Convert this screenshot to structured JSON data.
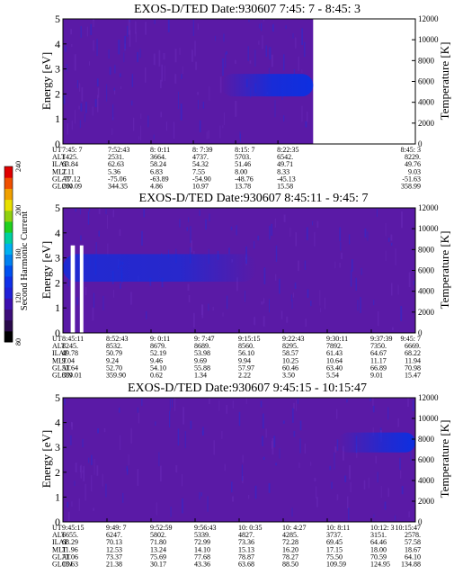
{
  "chart_data": [
    {
      "type": "heatmap",
      "title": "EXOS-D/TED   Date:930607  7:45: 7 - 8:45: 3",
      "ylabel": "Energy [eV]",
      "y2label": "Temperature [K]",
      "ylim": [
        0,
        5
      ],
      "y2lim": [
        0,
        12000
      ],
      "yticks": [
        "0",
        "1",
        "2",
        "3",
        "4",
        "5"
      ],
      "y2ticks": [
        "0",
        "2000",
        "4000",
        "6000",
        "8000",
        "10000",
        "12000"
      ],
      "time_range_fraction": [
        0,
        0.71
      ],
      "enhancement": {
        "energy_center": 2.35,
        "energy_halfwidth": 0.45,
        "start_fraction": 0.45,
        "end_fraction": 0.71
      },
      "rows": [
        "UT",
        "ALT",
        "ILAT",
        "MLT",
        "GLAT",
        "GLON"
      ],
      "columns": [
        {
          "at": 0.0,
          "values": [
            "7:45: 7",
            "1425.",
            "63.84",
            "2.11",
            "-77.12",
            "260.09"
          ]
        },
        {
          "at": 0.13,
          "values": [
            "7:52:43",
            "2531.",
            "62.63",
            "5.36",
            "-75.06",
            "344.35"
          ]
        },
        {
          "at": 0.25,
          "values": [
            "8: 0:11",
            "3664.",
            "58.24",
            "6.83",
            "-63.89",
            "4.86"
          ]
        },
        {
          "at": 0.37,
          "values": [
            "8: 7:39",
            "4737.",
            "54.32",
            "7.55",
            "-54.90",
            "10.97"
          ]
        },
        {
          "at": 0.49,
          "values": [
            "8:15: 7",
            "5703.",
            "51.46",
            "8.00",
            "-48.76",
            "13.78"
          ]
        },
        {
          "at": 0.61,
          "values": [
            "8:22:35",
            "6542.",
            "49.71",
            "8.33",
            "-45.13",
            "15.58"
          ]
        },
        {
          "at": 1.0,
          "values": [
            "8:45: 3",
            "8229.",
            "49.76",
            "9.03",
            "-51.63",
            "358.99"
          ]
        }
      ]
    },
    {
      "type": "heatmap",
      "title": "EXOS-D/TED   Date:930607  8:45:11 - 9:45: 7",
      "ylabel": "Energy [eV]",
      "y2label": "Temperature [K]",
      "ylim": [
        0,
        5
      ],
      "y2lim": [
        0,
        12000
      ],
      "yticks": [
        "0",
        "1",
        "2",
        "3",
        "4",
        "5"
      ],
      "y2ticks": [
        "0",
        "2000",
        "4000",
        "6000",
        "8000",
        "10000",
        "12000"
      ],
      "time_range_fraction": [
        0,
        1
      ],
      "data_gaps_fraction": [
        [
          0.022,
          0.034
        ],
        [
          0.048,
          0.058
        ]
      ],
      "enhancement": {
        "energy_center": 2.6,
        "energy_halfwidth": 0.55,
        "start_fraction": 0.0,
        "end_fraction": 0.55
      },
      "rows": [
        "UT",
        "ALT",
        "ILAT",
        "MLT",
        "GLAT",
        "GLON"
      ],
      "columns": [
        {
          "at": 0.0,
          "values": [
            "8:45:11",
            "8245.",
            "49.78",
            "9.04",
            "51.64",
            "359.01"
          ]
        },
        {
          "at": 0.125,
          "values": [
            "8:52:43",
            "8532.",
            "50.79",
            "9.24",
            "52.70",
            "359.90"
          ]
        },
        {
          "at": 0.25,
          "values": [
            "9: 0:11",
            "8679.",
            "52.19",
            "9.46",
            "54.10",
            "0.62"
          ]
        },
        {
          "at": 0.375,
          "values": [
            "9: 7:47",
            "8689.",
            "53.98",
            "9.69",
            "55.88",
            "1.34"
          ]
        },
        {
          "at": 0.5,
          "values": [
            "9:15:15",
            "8560.",
            "56.10",
            "9.94",
            "57.97",
            "2.22"
          ]
        },
        {
          "at": 0.625,
          "values": [
            "9:22:43",
            "8295.",
            "58.57",
            "10.25",
            "60.46",
            "3.50"
          ]
        },
        {
          "at": 0.75,
          "values": [
            "9:30:11",
            "7892.",
            "61.43",
            "10.64",
            "63.40",
            "5.54"
          ]
        },
        {
          "at": 0.875,
          "values": [
            "9:37:39",
            "7350.",
            "64.67",
            "11.17",
            "66.89",
            "9.01"
          ]
        },
        {
          "at": 1.0,
          "values": [
            "9:45: 7",
            "6669.",
            "68.22",
            "11.94",
            "70.98",
            "15.47"
          ]
        }
      ]
    },
    {
      "type": "heatmap",
      "title": "EXOS-D/TED   Date:930607  9:45:15 - 10:15:47",
      "ylabel": "Energy [eV]",
      "y2label": "Temperature [K]",
      "ylim": [
        0,
        5
      ],
      "y2lim": [
        0,
        12000
      ],
      "yticks": [
        "0",
        "1",
        "2",
        "3",
        "4",
        "5"
      ],
      "y2ticks": [
        "0",
        "2000",
        "4000",
        "6000",
        "8000",
        "10000",
        "12000"
      ],
      "time_range_fraction": [
        0,
        1
      ],
      "enhancement": {
        "energy_center": 3.2,
        "energy_halfwidth": 0.4,
        "start_fraction": 0.78,
        "end_fraction": 1.0
      },
      "rows": [
        "UT",
        "ALT",
        "ILAT",
        "MLT",
        "GLAT",
        "GLON"
      ],
      "columns": [
        {
          "at": 0.0,
          "values": [
            "9:45:15",
            "6655.",
            "68.29",
            "11.96",
            "71.06",
            "15.63"
          ]
        },
        {
          "at": 0.125,
          "values": [
            "9:49: 7",
            "6247.",
            "70.13",
            "12.53",
            "73.37",
            "21.38"
          ]
        },
        {
          "at": 0.25,
          "values": [
            "9:52:59",
            "5802.",
            "71.80",
            "13.24",
            "75.69",
            "30.17"
          ]
        },
        {
          "at": 0.375,
          "values": [
            "9:56:43",
            "5339.",
            "72.99",
            "14.10",
            "77.68",
            "43.36"
          ]
        },
        {
          "at": 0.5,
          "values": [
            "10: 0:35",
            "4827.",
            "73.36",
            "15.13",
            "78.87",
            "63.68"
          ]
        },
        {
          "at": 0.625,
          "values": [
            "10: 4:27",
            "4285.",
            "72.28",
            "16.20",
            "78.27",
            "88.50"
          ]
        },
        {
          "at": 0.75,
          "values": [
            "10: 8:11",
            "3737.",
            "69.45",
            "17.15",
            "75.50",
            "109.59"
          ]
        },
        {
          "at": 0.875,
          "values": [
            "10:12: 3",
            "3151.",
            "64.46",
            "18.00",
            "70.59",
            "124.95"
          ]
        },
        {
          "at": 1.0,
          "values": [
            "10:15:47",
            "2578.",
            "57.58",
            "18.67",
            "64.10",
            "134.88"
          ]
        }
      ]
    }
  ],
  "colorbar": {
    "label": "Second Harmonic Current",
    "ticks": [
      "80",
      "120",
      "160",
      "200",
      "240"
    ],
    "range": [
      80,
      240
    ],
    "colors": [
      "#000000",
      "#2a0a4a",
      "#3d0e7a",
      "#3c10b0",
      "#2020d8",
      "#1030e8",
      "#0050f0",
      "#0080f0",
      "#00b0f0",
      "#00d0a0",
      "#20d020",
      "#90d010",
      "#e8e000",
      "#f0a000",
      "#f05000",
      "#e00000"
    ]
  },
  "colors": {
    "background": "#5a1aa6",
    "enhancement": "#0d2fe0",
    "gap": "#ffffff"
  }
}
